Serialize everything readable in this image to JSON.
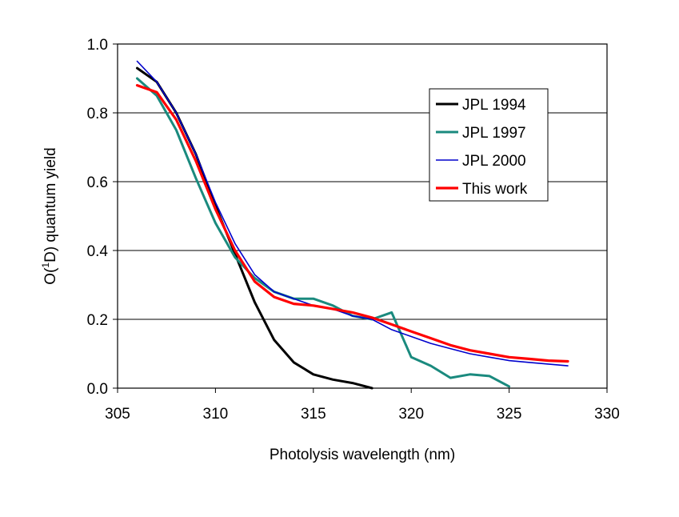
{
  "chart_data": {
    "type": "line",
    "title": "",
    "xlabel": "Photolysis wavelength (nm)",
    "ylabel_parts": {
      "pre": "O(",
      "sup": "1",
      "post": "D) quantum yield"
    },
    "xlim": [
      305,
      330
    ],
    "ylim": [
      0,
      1.0
    ],
    "xticks": [
      "305",
      "310",
      "315",
      "320",
      "325",
      "330"
    ],
    "yticks": [
      "0.0",
      "0.2",
      "0.4",
      "0.6",
      "0.8",
      "1.0"
    ],
    "grid": "horizontal",
    "legend_position": "top-right",
    "series": [
      {
        "name": "JPL 1994",
        "color": "#000000",
        "x": [
          306,
          307,
          308,
          309,
          310,
          311,
          312,
          313,
          314,
          315,
          316,
          317,
          318
        ],
        "y": [
          0.93,
          0.89,
          0.8,
          0.68,
          0.53,
          0.39,
          0.25,
          0.14,
          0.075,
          0.04,
          0.025,
          0.015,
          0.0
        ]
      },
      {
        "name": "JPL 1997",
        "color": "#1a8a7e",
        "x": [
          306,
          307,
          308,
          309,
          310,
          311,
          312,
          313,
          314,
          315,
          316,
          317,
          318,
          319,
          320,
          321,
          322,
          323,
          324,
          325
        ],
        "y": [
          0.9,
          0.85,
          0.75,
          0.61,
          0.48,
          0.38,
          0.32,
          0.28,
          0.26,
          0.26,
          0.24,
          0.21,
          0.2,
          0.22,
          0.09,
          0.065,
          0.03,
          0.04,
          0.035,
          0.005
        ]
      },
      {
        "name": "JPL 2000",
        "color": "#0000cc",
        "x": [
          306,
          307,
          308,
          309,
          310,
          311,
          312,
          313,
          314,
          315,
          316,
          317,
          318,
          319,
          320,
          321,
          322,
          323,
          324,
          325,
          326,
          327,
          328
        ],
        "y": [
          0.95,
          0.89,
          0.8,
          0.68,
          0.54,
          0.42,
          0.33,
          0.28,
          0.26,
          0.24,
          0.23,
          0.21,
          0.2,
          0.17,
          0.15,
          0.13,
          0.115,
          0.1,
          0.09,
          0.08,
          0.075,
          0.07,
          0.065
        ]
      },
      {
        "name": "This work",
        "color": "#ff0000",
        "x": [
          306,
          307,
          308,
          309,
          310,
          311,
          312,
          313,
          314,
          315,
          316,
          317,
          318,
          319,
          320,
          321,
          322,
          323,
          324,
          325,
          326,
          327,
          328
        ],
        "y": [
          0.88,
          0.86,
          0.78,
          0.66,
          0.52,
          0.4,
          0.31,
          0.265,
          0.245,
          0.24,
          0.23,
          0.22,
          0.205,
          0.185,
          0.165,
          0.145,
          0.125,
          0.11,
          0.1,
          0.09,
          0.085,
          0.08,
          0.078
        ]
      }
    ]
  }
}
